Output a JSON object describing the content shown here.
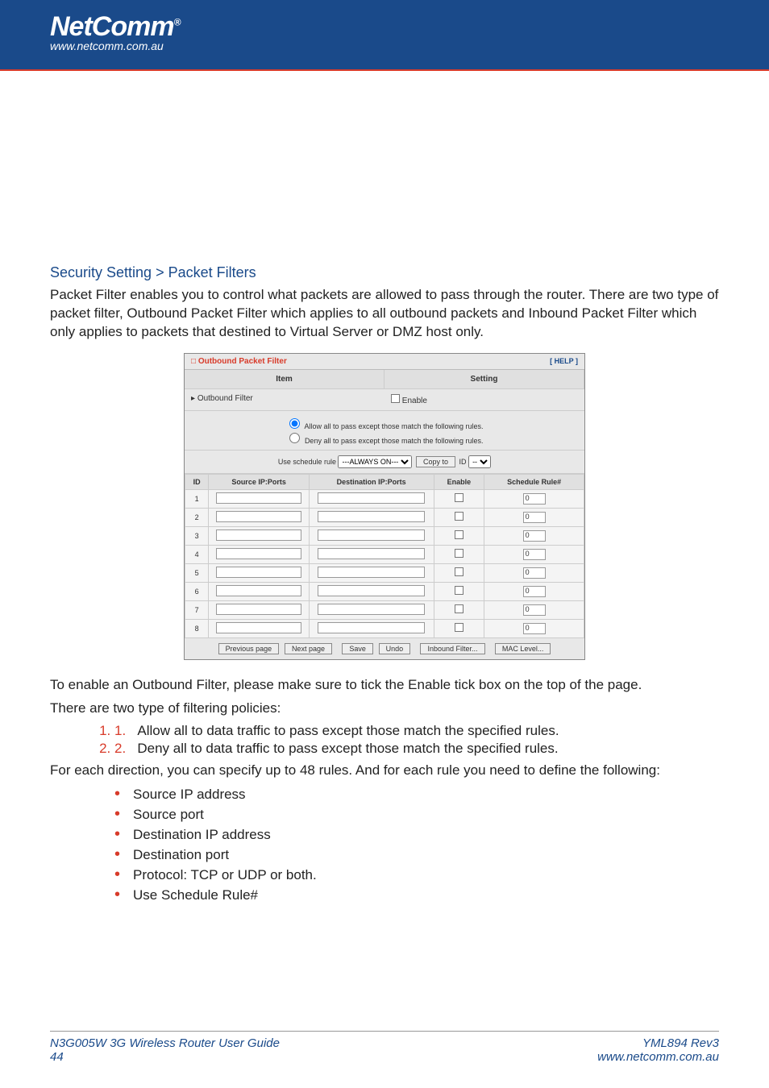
{
  "header": {
    "brand": "NetComm",
    "brand_url": "www.netcomm.com.au",
    "accent_color": "#d83b2a",
    "bar_color": "#1a4a8a"
  },
  "section": {
    "breadcrumb": "Security Setting > Packet Filters",
    "intro": "Packet Filter enables you to control what packets are allowed to pass through the router. There are two type of packet filter, Outbound Packet Filter which applies to all outbound packets and Inbound Packet Filter which only applies to packets that destined to Virtual Server or DMZ host only."
  },
  "panel": {
    "title": "Outbound Packet Filter",
    "help": "[ HELP ]",
    "col_item": "Item",
    "col_setting": "Setting",
    "outbound_label": "Outbound Filter",
    "enable_label": "Enable",
    "radio_allow": "Allow all to pass except those match the following rules.",
    "radio_deny": "Deny all to pass except those match the following rules.",
    "schedule_label": "Use schedule rule",
    "schedule_option": "---ALWAYS ON---",
    "copy_btn": "Copy to",
    "id_label": "ID",
    "id_option": "--",
    "headers": {
      "id": "ID",
      "src": "Source IP:Ports",
      "dst": "Destination IP:Ports",
      "enable": "Enable",
      "sched": "Schedule Rule#"
    },
    "rows": [
      {
        "id": "1",
        "sched": "0"
      },
      {
        "id": "2",
        "sched": "0"
      },
      {
        "id": "3",
        "sched": "0"
      },
      {
        "id": "4",
        "sched": "0"
      },
      {
        "id": "5",
        "sched": "0"
      },
      {
        "id": "6",
        "sched": "0"
      },
      {
        "id": "7",
        "sched": "0"
      },
      {
        "id": "8",
        "sched": "0"
      }
    ],
    "buttons": {
      "prev": "Previous page",
      "next": "Next page",
      "save": "Save",
      "undo": "Undo",
      "inbound": "Inbound Filter...",
      "mac": "MAC Level..."
    }
  },
  "post": {
    "p1": "To enable an Outbound Filter, please make sure to tick the Enable tick box on the top of the page.",
    "p2": "There are two type of filtering policies:",
    "ol1": "Allow all to data traffic to pass except those match the specified rules.",
    "ol2": "Deny all to data traffic to pass except those match the specified rules.",
    "p3": "For each direction, you can specify up to 48 rules. And for each rule you need to define the following:",
    "b1": "Source IP address",
    "b2": "Source port",
    "b3": "Destination IP address",
    "b4": "Destination port",
    "b5": "Protocol: TCP or UDP or both.",
    "b6": "Use Schedule Rule#"
  },
  "footer": {
    "left_title": "N3G005W 3G Wireless Router User Guide",
    "left_page": "44",
    "right_rev": "YML894 Rev3",
    "right_url": "www.netcomm.com.au"
  }
}
